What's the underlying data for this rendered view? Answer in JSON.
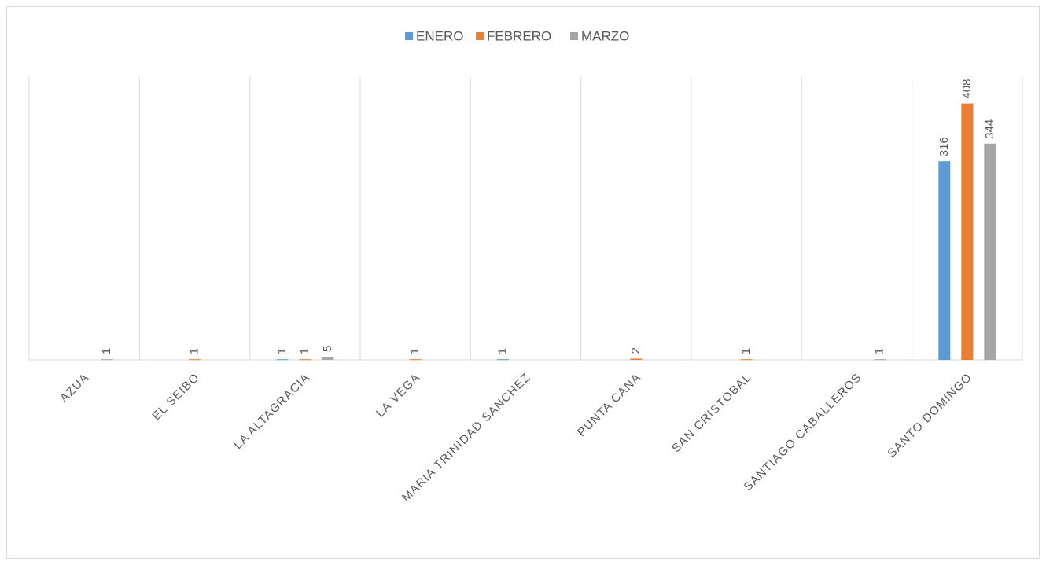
{
  "chart_data": {
    "type": "bar",
    "categories": [
      "AZUA",
      "EL SEIBO",
      "LA ALTAGRACIA",
      "LA VEGA",
      "MARIA TRINIDAD SANCHEZ",
      "PUNTA CANA",
      "SAN CRISTOBAL",
      "SANTIAGO CABALLEROS",
      "SANTO DOMINGO"
    ],
    "series": [
      {
        "name": "ENERO",
        "color": "#5b9bd5",
        "values": [
          null,
          null,
          1,
          null,
          1,
          null,
          null,
          null,
          316
        ]
      },
      {
        "name": "FEBRERO",
        "color": "#ed7d31",
        "values": [
          null,
          1,
          1,
          1,
          null,
          2,
          1,
          null,
          408
        ]
      },
      {
        "name": "MARZO",
        "color": "#a5a5a5",
        "values": [
          1,
          null,
          5,
          null,
          null,
          null,
          null,
          1,
          344
        ]
      }
    ],
    "ylim": [
      0,
      450
    ],
    "legend": "top"
  }
}
